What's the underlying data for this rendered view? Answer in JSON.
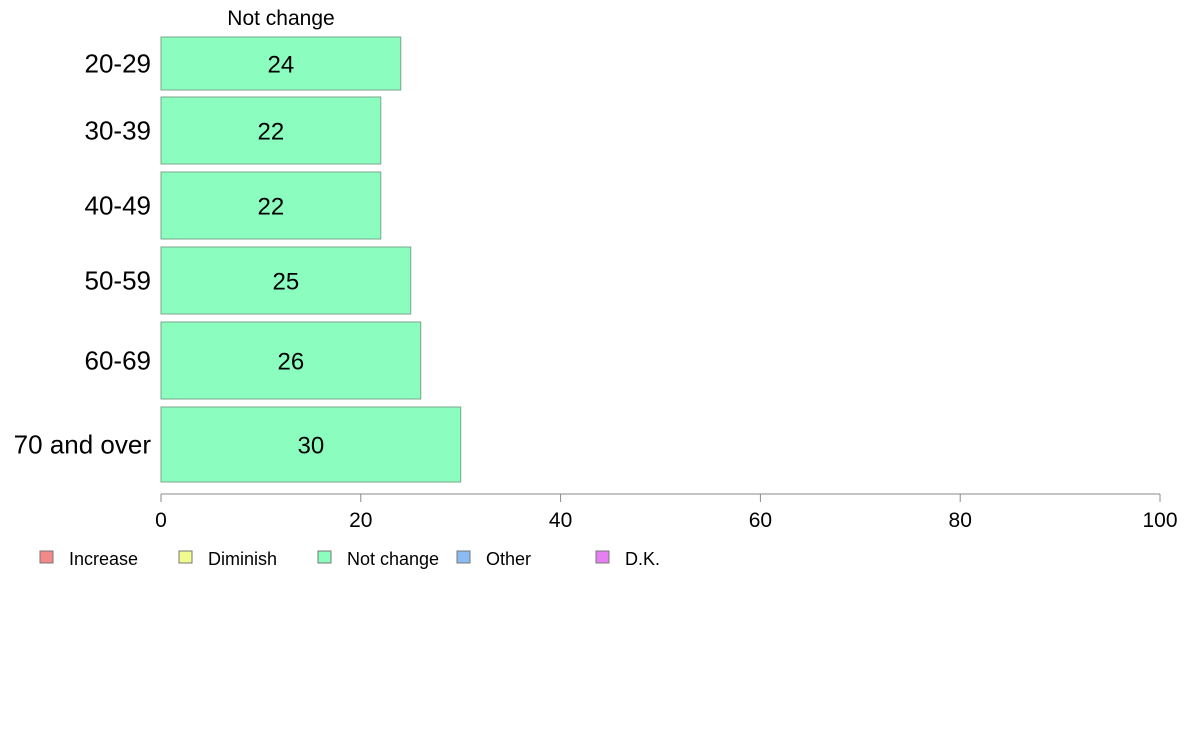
{
  "chart_data": {
    "type": "bar",
    "orientation": "horizontal",
    "series_title": "Not change",
    "categories": [
      "20-29",
      "30-39",
      "40-49",
      "50-59",
      "60-69",
      "70 and over"
    ],
    "series": [
      {
        "name": "Not change",
        "values": [
          24,
          22,
          22,
          25,
          26,
          30
        ]
      }
    ],
    "xlim": [
      0,
      100
    ],
    "xticks": [
      0,
      20,
      40,
      60,
      80,
      100
    ],
    "xlabel": "",
    "ylabel": "",
    "grid": false,
    "legend_position": "bottom-left",
    "legend": [
      {
        "label": "Increase",
        "color": "#f4898a"
      },
      {
        "label": "Diminish",
        "color": "#f0fb8d"
      },
      {
        "label": "Not change",
        "color": "#8bfebf"
      },
      {
        "label": "Other",
        "color": "#8abcf3"
      },
      {
        "label": "D.K.",
        "color": "#e77ff2"
      }
    ],
    "bar_color": "#8bfebf"
  }
}
